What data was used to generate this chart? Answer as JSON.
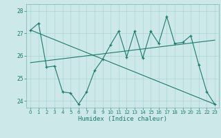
{
  "title": "",
  "xlabel": "Humidex (Indice chaleur)",
  "bg_color": "#cce8e8",
  "line_color": "#1a7a6e",
  "grid_color": "#aad4d4",
  "xlim": [
    -0.5,
    23.5
  ],
  "ylim": [
    23.7,
    28.3
  ],
  "yticks": [
    24,
    25,
    26,
    27,
    28
  ],
  "xticks": [
    0,
    1,
    2,
    3,
    4,
    5,
    6,
    7,
    8,
    9,
    10,
    11,
    12,
    13,
    14,
    15,
    16,
    17,
    18,
    19,
    20,
    21,
    22,
    23
  ],
  "series1_x": [
    0,
    1,
    2,
    3,
    4,
    5,
    6,
    7,
    8,
    9,
    10,
    11,
    12,
    13,
    14,
    15,
    16,
    17,
    18,
    19,
    20,
    21,
    22,
    23
  ],
  "series1_y": [
    27.15,
    27.45,
    25.5,
    25.55,
    24.4,
    24.35,
    23.85,
    24.4,
    25.35,
    25.85,
    26.5,
    27.1,
    25.95,
    27.1,
    25.9,
    27.1,
    26.55,
    27.75,
    26.55,
    26.6,
    26.9,
    25.6,
    24.4,
    23.85
  ],
  "series2_x": [
    0,
    23
  ],
  "series2_y": [
    27.15,
    23.85
  ],
  "series3_x": [
    0,
    23
  ],
  "series3_y": [
    25.7,
    26.7
  ]
}
